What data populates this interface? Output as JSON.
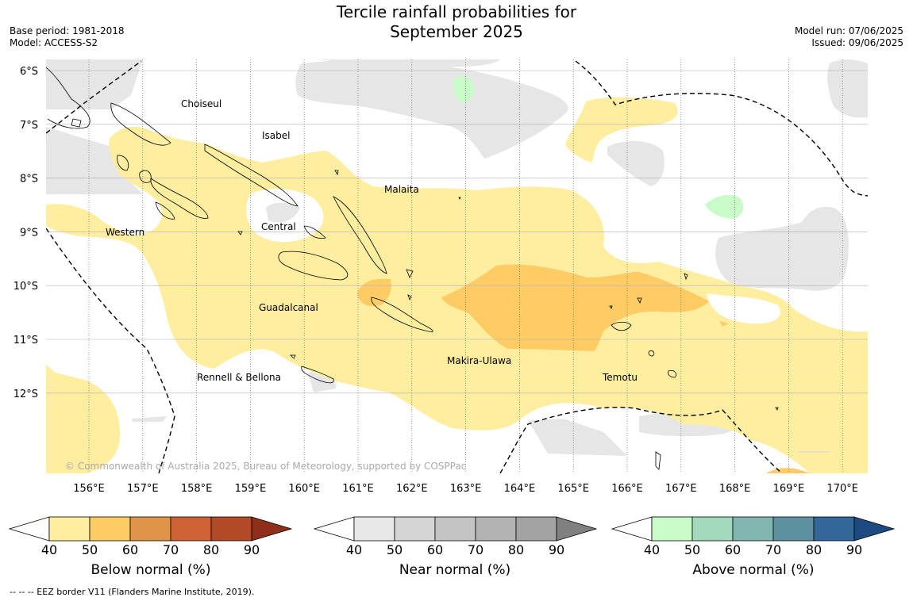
{
  "title_line1": "Tercile rainfall probabilities for",
  "title_line2": "September 2025",
  "meta_left": {
    "base_period": "Base period: 1981-2018",
    "model": "Model: ACCESS-S2"
  },
  "meta_right": {
    "model_run": "Model run: 07/06/2025",
    "issued": "Issued: 09/06/2025"
  },
  "map": {
    "lat_labels": [
      "6°S",
      "7°S",
      "8°S",
      "9°S",
      "10°S",
      "11°S",
      "12°S"
    ],
    "lon_labels": [
      "156°E",
      "157°E",
      "158°E",
      "159°E",
      "160°E",
      "161°E",
      "162°E",
      "163°E",
      "164°E",
      "165°E",
      "166°E",
      "167°E",
      "168°E",
      "169°E",
      "170°E"
    ],
    "provinces": [
      "Choiseul",
      "Isabel",
      "Malaita",
      "Western",
      "Central",
      "Guadalcanal",
      "Makira-Ulawa",
      "Rennell & Bellona",
      "Temotu"
    ],
    "copyright": "© Commonwealth of Australia 2025, Bureau of Meteorology, supported by COSPPac"
  },
  "colorbars": [
    {
      "label": "Below normal (%)",
      "ticks": [
        "40",
        "50",
        "60",
        "70",
        "80",
        "90"
      ],
      "colors": [
        "#ffffff",
        "#ffeda0",
        "#fecb65",
        "#e0944a",
        "#cd6335",
        "#b24a28",
        "#8f2e1a"
      ]
    },
    {
      "label": "Near normal (%)",
      "ticks": [
        "40",
        "50",
        "60",
        "70",
        "80",
        "90"
      ],
      "colors": [
        "#ffffff",
        "#e8e8e8",
        "#d5d5d5",
        "#c4c4c4",
        "#b3b3b3",
        "#a3a3a3",
        "#808080"
      ]
    },
    {
      "label": "Above normal (%)",
      "ticks": [
        "40",
        "50",
        "60",
        "70",
        "80",
        "90"
      ],
      "colors": [
        "#ffffff",
        "#c8fbc8",
        "#a3d9bd",
        "#80b5b0",
        "#5c92a0",
        "#336699",
        "#1b4b80"
      ]
    }
  ],
  "footnote": "--  --  -- EEZ border V11 (Flanders Marine Institute, 2019)."
}
